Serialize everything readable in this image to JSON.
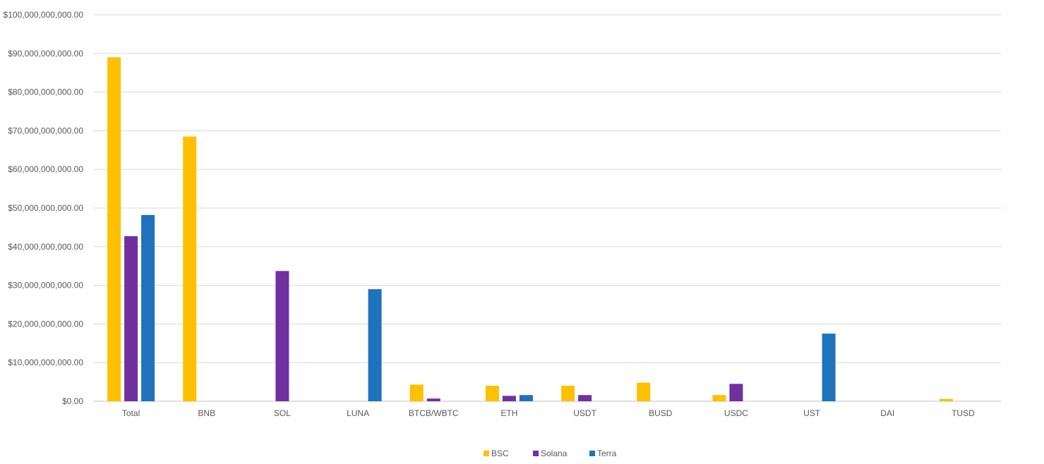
{
  "chart_data": {
    "type": "bar",
    "title": "",
    "xlabel": "",
    "ylabel": "",
    "ylim": [
      0,
      100000000000
    ],
    "yticks": [
      0,
      10000000000,
      20000000000,
      30000000000,
      40000000000,
      50000000000,
      60000000000,
      70000000000,
      80000000000,
      90000000000,
      100000000000
    ],
    "ytick_labels": [
      "$0.00",
      "$10,000,000,000.00",
      "$20,000,000,000.00",
      "$30,000,000,000.00",
      "$40,000,000,000.00",
      "$50,000,000,000.00",
      "$60,000,000,000.00",
      "$70,000,000,000.00",
      "$80,000,000,000.00",
      "$90,000,000,000.00",
      "$100,000,000,000.00"
    ],
    "grid": true,
    "legend_position": "bottom",
    "categories": [
      "Total",
      "BNB",
      "SOL",
      "LUNA",
      "BTCB/WBTC",
      "ETH",
      "USDT",
      "BUSD",
      "USDC",
      "UST",
      "DAI",
      "TUSD"
    ],
    "series": [
      {
        "name": "BSC",
        "color": "#FFC000",
        "values": [
          89000000000,
          68500000000,
          0,
          0,
          4300000000,
          4000000000,
          4000000000,
          4800000000,
          1600000000,
          0,
          0,
          600000000
        ]
      },
      {
        "name": "Solana",
        "color": "#7030A0",
        "values": [
          42700000000,
          0,
          33700000000,
          0,
          700000000,
          1400000000,
          1600000000,
          0,
          4500000000,
          0,
          0,
          0
        ]
      },
      {
        "name": "Terra",
        "color": "#1F72BC",
        "values": [
          48200000000,
          0,
          0,
          29000000000,
          0,
          1600000000,
          0,
          0,
          0,
          17500000000,
          0,
          0
        ]
      }
    ]
  }
}
